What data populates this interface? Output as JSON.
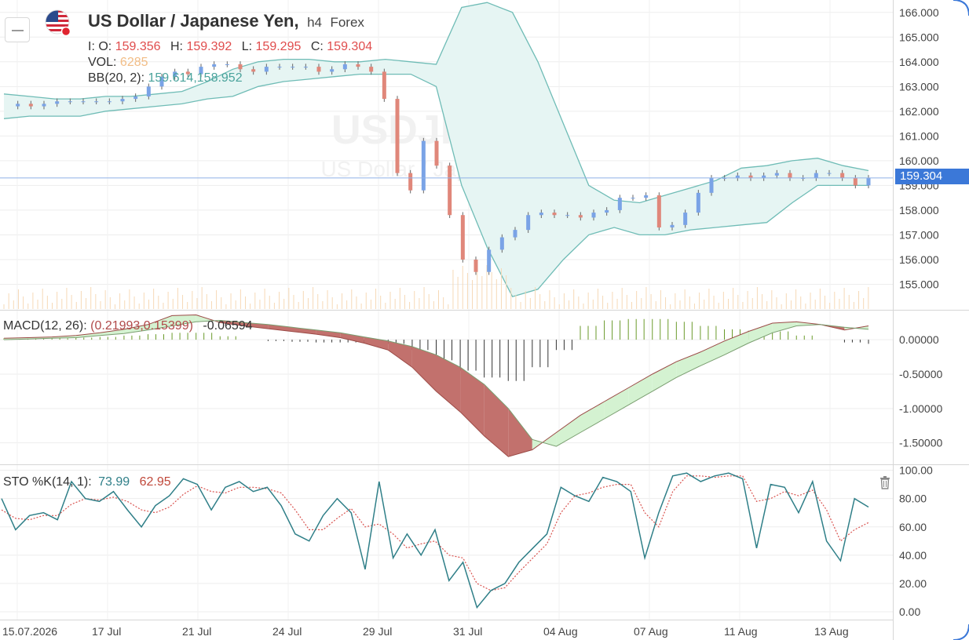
{
  "header": {
    "symbol_title": "US Dollar / Japanese Yen,",
    "timeframe": "h4",
    "market": "Forex",
    "watermark_symbol": "USDJPY, h4",
    "watermark_name": "US Dollar / Japanese Yen",
    "ohlc": {
      "prefix": "I: O:",
      "open": "159.356",
      "high_label": "H:",
      "high": "159.392",
      "low_label": "L:",
      "low": "159.295",
      "close_label": "C:",
      "close": "159.304"
    },
    "volume_label": "VOL:",
    "volume": "6285",
    "bb_label": "BB(20, 2):",
    "bb_values": "159.614,158.952",
    "last_price": "159.304"
  },
  "macd_legend": {
    "label": "MACD(12, 26):",
    "pair": "(0.21993,0.15399)",
    "hist": "-0.06594"
  },
  "sto_legend": {
    "label": "STO %K(14, 1):",
    "k": "73.99",
    "d": "62.95"
  },
  "colors": {
    "bull": "#7aa3e6",
    "bear": "#e0877a",
    "bb_fill": "#e6f5f3",
    "bb_line": "#6fbcb6",
    "volume": "#f6d9b6",
    "macd_neg_fill": "#c2716d",
    "macd_pos_fill": "#d4f2d1",
    "hist_pos": "#6a9a2a",
    "hist_neg": "#333333",
    "sto_k": "#2f7f88",
    "sto_d": "#d9534f",
    "price_tag": "#3b78d8"
  },
  "chart_data": [
    {
      "type": "candlestick",
      "x_labels": [
        "15.07.2026",
        "17 Jul",
        "21 Jul",
        "24 Jul",
        "29 Jul",
        "31 Jul",
        "04 Aug",
        "07 Aug",
        "11 Aug",
        "13 Aug"
      ],
      "ylim": [
        154.0,
        166.5
      ],
      "y_ticks": [
        "166.000",
        "165.000",
        "164.000",
        "163.000",
        "162.000",
        "161.000",
        "160.000",
        "159.000",
        "158.000",
        "157.000",
        "156.000",
        "155.000"
      ],
      "close_path": [
        162.2,
        162.3,
        162.2,
        162.3,
        162.4,
        162.4,
        162.4,
        162.4,
        162.4,
        162.5,
        162.6,
        163.0,
        163.4,
        163.6,
        163.5,
        163.8,
        163.9,
        163.9,
        163.7,
        163.6,
        163.8,
        163.8,
        163.8,
        163.8,
        163.6,
        163.7,
        163.9,
        163.8,
        163.6,
        162.5,
        159.5,
        158.8,
        160.8,
        159.8,
        157.8,
        156.0,
        155.5,
        156.4,
        156.9,
        157.2,
        157.8,
        157.9,
        157.8,
        157.8,
        157.7,
        157.9,
        158.0,
        158.5,
        158.5,
        158.6,
        157.3,
        157.4,
        157.9,
        158.7,
        159.3,
        159.3,
        159.4,
        159.3,
        159.4,
        159.5,
        159.3,
        159.3,
        159.5,
        159.5,
        159.3,
        159.0,
        159.3
      ],
      "bb_upper": [
        162.7,
        162.6,
        162.5,
        162.5,
        162.6,
        162.6,
        162.7,
        162.8,
        163.2,
        163.7,
        164.0,
        164.1,
        164.1,
        164.0,
        164.0,
        164.1,
        164.0,
        163.9,
        166.2,
        166.4,
        166.0,
        164.0,
        161.5,
        159.0,
        158.4,
        158.3,
        158.6,
        158.9,
        159.2,
        159.7,
        159.8,
        160.0,
        160.1,
        159.8,
        159.6
      ],
      "bb_lower": [
        161.7,
        161.8,
        161.8,
        161.8,
        162.0,
        162.1,
        162.2,
        162.3,
        162.5,
        162.6,
        163.0,
        163.2,
        163.3,
        163.4,
        163.5,
        163.5,
        163.5,
        163.0,
        159.0,
        156.5,
        154.5,
        154.8,
        156.0,
        157.0,
        157.3,
        157.0,
        157.0,
        157.2,
        157.3,
        157.4,
        157.5,
        158.3,
        159.0,
        159.0,
        159.0
      ]
    },
    {
      "type": "line",
      "name": "MACD",
      "ylim": [
        -1.8,
        0.4
      ],
      "y_ticks": [
        "0.00000",
        "-0.50000",
        "-1.00000",
        "-1.50000"
      ],
      "macd": [
        0.02,
        0.03,
        0.04,
        0.06,
        0.1,
        0.15,
        0.22,
        0.35,
        0.36,
        0.25,
        0.2,
        0.16,
        0.12,
        0.08,
        0.03,
        -0.05,
        -0.15,
        -0.4,
        -0.75,
        -1.05,
        -1.4,
        -1.7,
        -1.6,
        -1.35,
        -1.1,
        -0.9,
        -0.7,
        -0.5,
        -0.32,
        -0.18,
        -0.02,
        0.12,
        0.24,
        0.26,
        0.22,
        0.14,
        0.2
      ],
      "signal": [
        0.0,
        0.01,
        0.02,
        0.03,
        0.06,
        0.09,
        0.14,
        0.2,
        0.26,
        0.28,
        0.25,
        0.22,
        0.18,
        0.14,
        0.1,
        0.04,
        -0.02,
        -0.1,
        -0.22,
        -0.4,
        -0.65,
        -1.0,
        -1.45,
        -1.55,
        -1.35,
        -1.15,
        -0.95,
        -0.75,
        -0.55,
        -0.38,
        -0.22,
        -0.05,
        0.1,
        0.2,
        0.22,
        0.18,
        0.15
      ],
      "histogram": [
        0.02,
        0.02,
        0.02,
        0.03,
        0.04,
        0.06,
        0.08,
        0.1,
        0.1,
        0.05,
        0.0,
        -0.02,
        -0.03,
        -0.04,
        -0.04,
        -0.05,
        -0.06,
        -0.15,
        -0.3,
        -0.45,
        -0.55,
        -0.6,
        -0.4,
        -0.15,
        0.2,
        0.28,
        0.3,
        0.3,
        0.26,
        0.2,
        0.15,
        0.13,
        0.12,
        0.06,
        0.0,
        -0.04,
        -0.06
      ]
    },
    {
      "type": "line",
      "name": "STO",
      "ylim": [
        -5,
        102
      ],
      "y_ticks": [
        "100.00",
        "80.00",
        "60.00",
        "40.00",
        "20.00",
        "0.00"
      ],
      "k": [
        80,
        58,
        68,
        70,
        65,
        92,
        80,
        78,
        85,
        72,
        60,
        75,
        82,
        94,
        90,
        72,
        88,
        92,
        85,
        88,
        75,
        55,
        50,
        68,
        80,
        70,
        30,
        92,
        38,
        55,
        40,
        58,
        22,
        35,
        3,
        15,
        20,
        35,
        45,
        55,
        88,
        82,
        78,
        95,
        92,
        85,
        38,
        70,
        96,
        98,
        92,
        96,
        98,
        94,
        45,
        90,
        88,
        70,
        92,
        50,
        36,
        80,
        74
      ],
      "d": [
        72,
        66,
        65,
        68,
        68,
        76,
        80,
        79,
        81,
        78,
        72,
        70,
        74,
        83,
        89,
        85,
        84,
        88,
        88,
        87,
        84,
        72,
        58,
        58,
        66,
        73,
        60,
        62,
        55,
        45,
        48,
        50,
        40,
        38,
        20,
        15,
        17,
        28,
        38,
        48,
        70,
        82,
        84,
        88,
        90,
        90,
        70,
        60,
        85,
        96,
        96,
        95,
        96,
        96,
        78,
        80,
        85,
        82,
        86,
        72,
        50,
        58,
        63
      ]
    }
  ]
}
